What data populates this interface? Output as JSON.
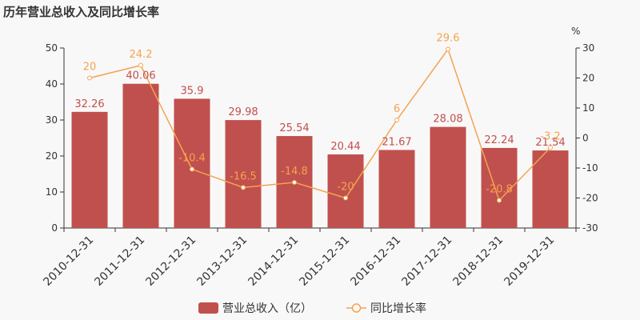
{
  "chart_data": {
    "type": "bar",
    "title": "历年营业总收入及同比增长率",
    "categories": [
      "2010-12-31",
      "2011-12-31",
      "2012-12-31",
      "2013-12-31",
      "2014-12-31",
      "2015-12-31",
      "2016-12-31",
      "2017-12-31",
      "2018-12-31",
      "2019-12-31"
    ],
    "series": [
      {
        "name": "营业总收入（亿）",
        "type": "bar",
        "axis": "left",
        "values": [
          32.26,
          40.06,
          35.9,
          29.98,
          25.54,
          20.44,
          21.67,
          28.08,
          22.24,
          21.54
        ],
        "labels": [
          "32.26",
          "40.06",
          "35.9",
          "29.98",
          "25.54",
          "20.44",
          "21.67",
          "28.08",
          "22.24",
          "21.54"
        ]
      },
      {
        "name": "同比增长率",
        "type": "line",
        "axis": "right",
        "values": [
          20,
          24.2,
          -10.4,
          -16.5,
          -14.8,
          -20,
          6,
          29.6,
          -20.8,
          -3.2
        ],
        "labels": [
          "20",
          "24.2",
          "-10.4",
          "-16.5",
          "-14.8",
          "-20",
          "6",
          "29.6",
          "-20.8",
          "-3.2"
        ]
      }
    ],
    "y_left": {
      "min": 0,
      "max": 50,
      "ticks": [
        "0",
        "10",
        "20",
        "30",
        "40",
        "50"
      ]
    },
    "y_right": {
      "min": -30,
      "max": 30,
      "ticks": [
        "-30",
        "-20",
        "-10",
        "0",
        "10",
        "20",
        "30"
      ],
      "unit": "%"
    },
    "grid": false,
    "legend_position": "bottom-center",
    "colors": {
      "bar": "#c0504d",
      "bar_label": "#c0504d",
      "line": "#f4a350",
      "line_label": "#f4a350",
      "text": "#333333",
      "axis": "#333333"
    }
  }
}
